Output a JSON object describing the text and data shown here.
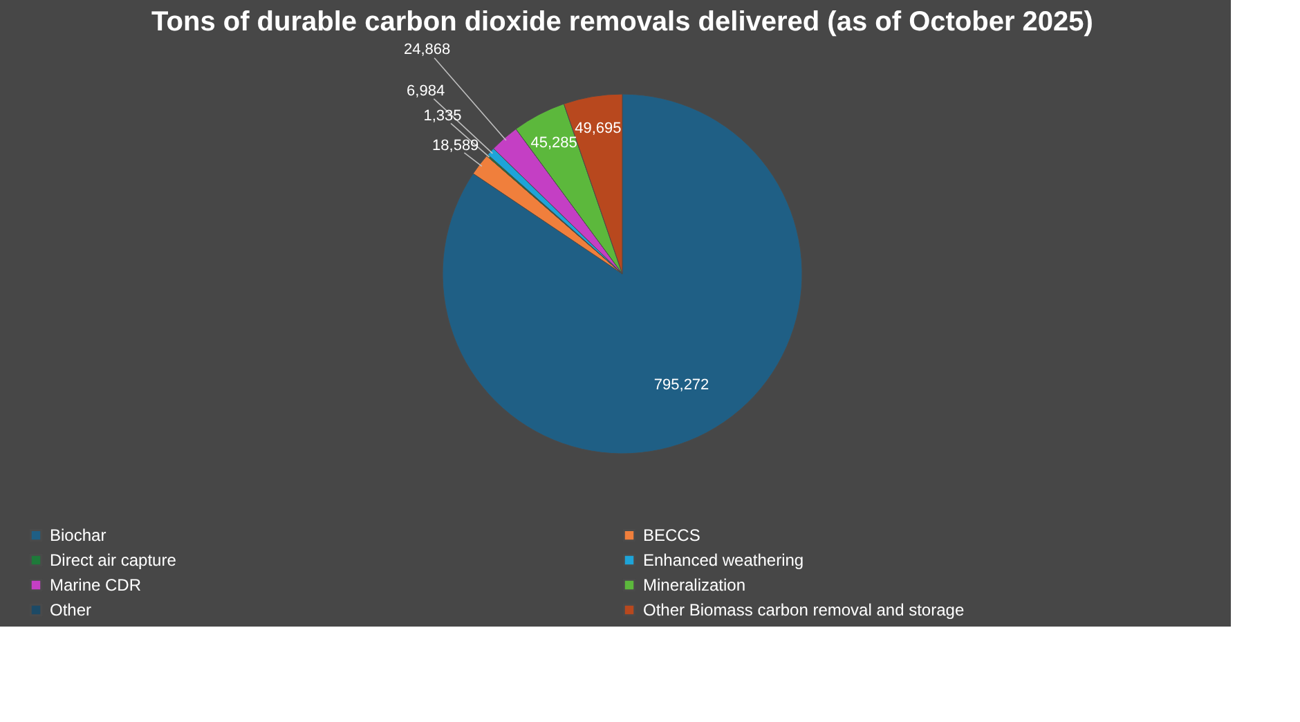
{
  "chart_data": {
    "type": "pie",
    "title": "Tons of durable carbon dioxide removals delivered (as of October 2025)",
    "categories": [
      "Biochar",
      "BECCS",
      "Direct air capture",
      "Enhanced weathering",
      "Marine CDR",
      "Mineralization",
      "Other",
      "Other Biomass carbon removal and storage"
    ],
    "values": [
      795272,
      18589,
      1335,
      6984,
      24868,
      45285,
      0,
      49695
    ],
    "value_labels": [
      "795,272",
      "18,589",
      "1,335",
      "6,984",
      "24,868",
      "45,285",
      null,
      "49,695"
    ],
    "colors": [
      "#1f5f85",
      "#f07f3c",
      "#1e7a3a",
      "#1ea4d8",
      "#c43fc4",
      "#5cb83c",
      "#1c4a66",
      "#b8481e"
    ],
    "legend": "bottom"
  }
}
